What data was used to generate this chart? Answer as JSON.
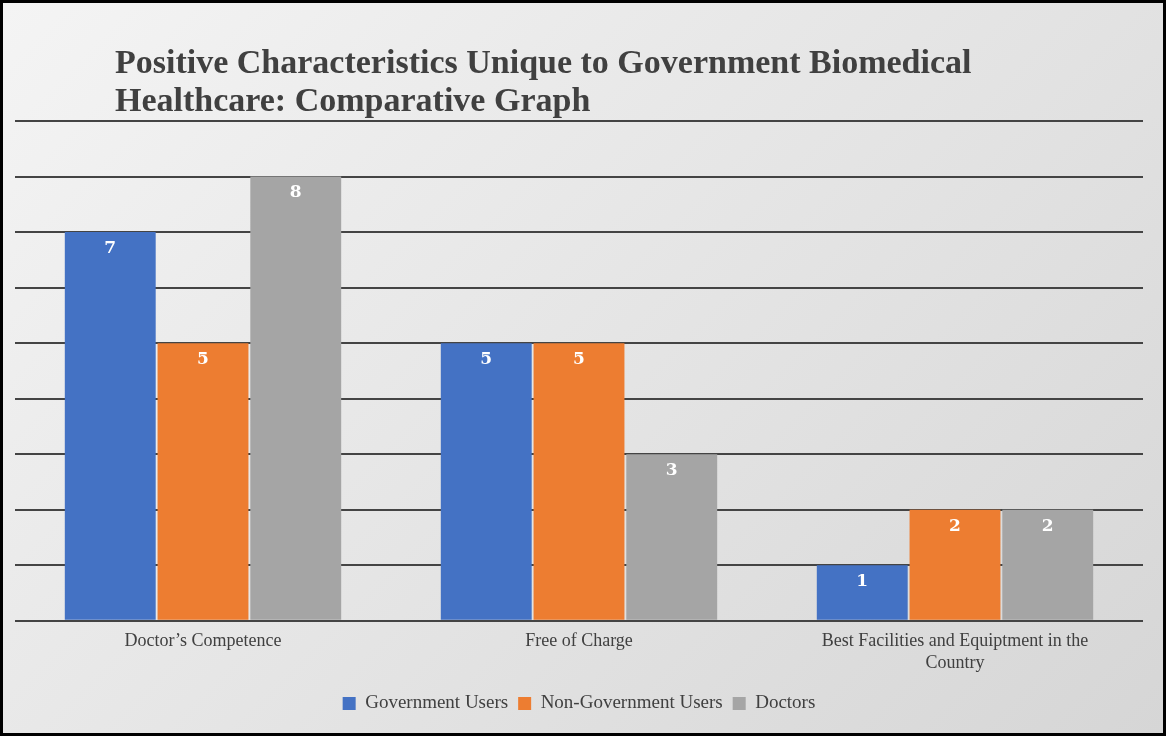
{
  "chart_data": {
    "type": "bar",
    "title": "Positive Characteristics Unique to Government Biomedical Healthcare: Comparative Graph",
    "categories": [
      "Doctor’s Competence",
      "Free of Charge",
      "Best Facilities and Equiptment in the Country"
    ],
    "series": [
      {
        "name": "Government Users",
        "color": "#4472c4",
        "values": [
          7,
          5,
          1
        ]
      },
      {
        "name": "Non-Government Users",
        "color": "#ed7d31",
        "values": [
          5,
          5,
          2
        ]
      },
      {
        "name": "Doctors",
        "color": "#a5a5a5",
        "values": [
          8,
          3,
          2
        ]
      }
    ],
    "ylim": [
      0,
      9
    ],
    "yticks": [
      0,
      1,
      2,
      3,
      4,
      5,
      6,
      7,
      8,
      9
    ],
    "tick_labels": "x",
    "grid": "y",
    "legend": "bottom",
    "data_labels": true
  }
}
